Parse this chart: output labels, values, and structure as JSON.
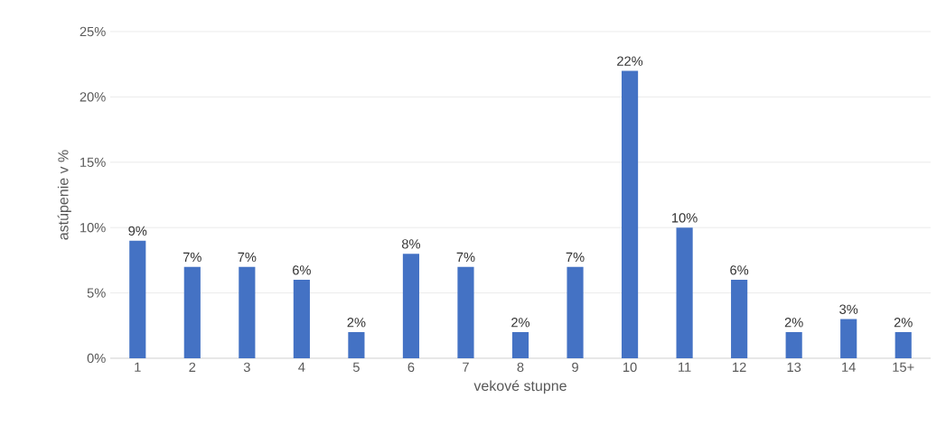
{
  "chart_data": {
    "type": "bar",
    "categories": [
      "1",
      "2",
      "3",
      "4",
      "5",
      "6",
      "7",
      "8",
      "9",
      "10",
      "11",
      "12",
      "13",
      "14",
      "15+"
    ],
    "values": [
      9,
      7,
      7,
      6,
      2,
      8,
      7,
      2,
      7,
      22,
      10,
      6,
      2,
      3,
      2
    ],
    "value_labels": [
      "9%",
      "7%",
      "7%",
      "6%",
      "2%",
      "8%",
      "7%",
      "2%",
      "7%",
      "22%",
      "10%",
      "6%",
      "2%",
      "3%",
      "2%"
    ],
    "color": "#4472c4",
    "ylim": [
      0,
      25
    ],
    "yticks": [
      {
        "value": 0,
        "label": "0%"
      },
      {
        "value": 5,
        "label": "5%"
      },
      {
        "value": 10,
        "label": "10%"
      },
      {
        "value": 15,
        "label": "15%"
      },
      {
        "value": 20,
        "label": "20%"
      },
      {
        "value": 25,
        "label": "25%"
      }
    ],
    "grid": "y",
    "xlabel": "vekové stupne",
    "ylabel": "astúpenie v %"
  }
}
